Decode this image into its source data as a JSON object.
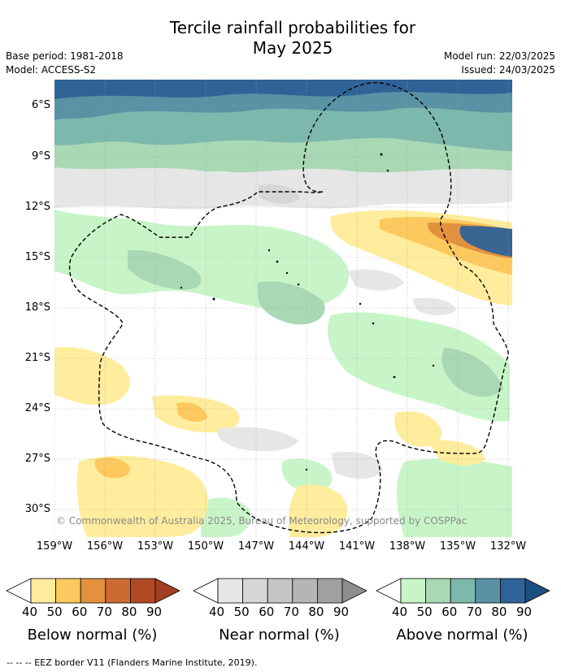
{
  "title_line1": "Tercile rainfall probabilities for",
  "title_line2": "May 2025",
  "base_period": "Base period: 1981-2018",
  "model": "Model: ACCESS-S2",
  "model_run": "Model run: 22/03/2025",
  "issued": "Issued: 24/03/2025",
  "lat_labels": [
    "6°S",
    "9°S",
    "12°S",
    "15°S",
    "18°S",
    "21°S",
    "24°S",
    "27°S",
    "30°S"
  ],
  "lon_labels": [
    "159°W",
    "156°W",
    "153°W",
    "150°W",
    "147°W",
    "144°W",
    "141°W",
    "138°W",
    "135°W",
    "132°W"
  ],
  "credit": "© Commonwealth of Australia 2025, Bureau of Meteorology, supported by COSPPac",
  "legends": [
    {
      "title": "Below normal (%)",
      "ticks": [
        "40",
        "50",
        "60",
        "70",
        "80",
        "90"
      ],
      "colors": [
        "#ffffff",
        "#ffec9c",
        "#fdc85e",
        "#e3913e",
        "#cc6a33",
        "#b04a25",
        "#a13f22"
      ]
    },
    {
      "title": "Near normal (%)",
      "ticks": [
        "40",
        "50",
        "60",
        "70",
        "80",
        "90"
      ],
      "colors": [
        "#ffffff",
        "#e6e6e6",
        "#d6d6d6",
        "#c5c5c5",
        "#b5b5b5",
        "#a0a0a0",
        "#8e8e8e"
      ]
    },
    {
      "title": "Above normal (%)",
      "ticks": [
        "40",
        "50",
        "60",
        "70",
        "80",
        "90"
      ],
      "colors": [
        "#ffffff",
        "#c8f5c8",
        "#a8d8b4",
        "#7cb8ac",
        "#5892a4",
        "#2f6398",
        "#1c4f80"
      ]
    }
  ],
  "footnote": "--  --  -- EEZ border V11 (Flanders Marine Institute, 2019)."
}
